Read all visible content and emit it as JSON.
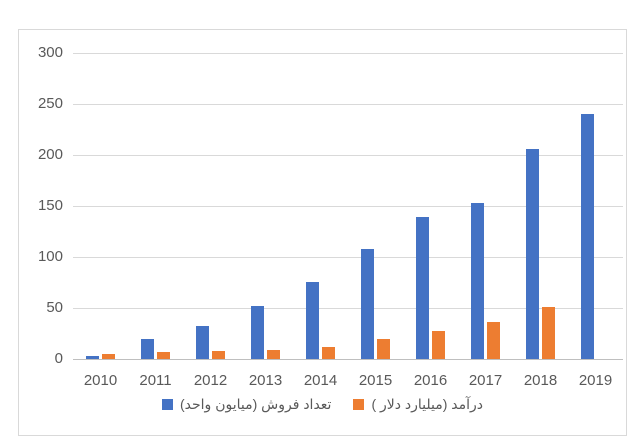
{
  "chart_data": {
    "type": "bar",
    "title": "",
    "xlabel": "",
    "ylabel": "",
    "categories": [
      "2010",
      "2011",
      "2012",
      "2013",
      "2014",
      "2015",
      "2016",
      "2017",
      "2018",
      "2019"
    ],
    "series": [
      {
        "name": "تعداد فروش (میایون واحد)",
        "color": "#4472C4",
        "values": [
          3,
          20,
          32,
          52,
          75,
          108,
          139,
          153,
          206,
          240
        ]
      },
      {
        "name": "درآمد (میلیارد دلار )",
        "color": "#ED7D31",
        "values": [
          4.5,
          7,
          7.5,
          9,
          12,
          20,
          27,
          36,
          51,
          null
        ]
      }
    ],
    "ylim": [
      0,
      300
    ],
    "yticks": [
      0,
      50,
      100,
      150,
      200,
      250,
      300
    ],
    "grid": true,
    "legend_position": "bottom"
  },
  "style": {
    "series1_color": "#4472C4",
    "series2_color": "#ED7D31",
    "grid_color": "#D9D9D9",
    "axis_line_color": "#BFBFBF",
    "text_color": "#595959",
    "frame_border_color": "#D9D9D9",
    "background": "#FFFFFF"
  }
}
